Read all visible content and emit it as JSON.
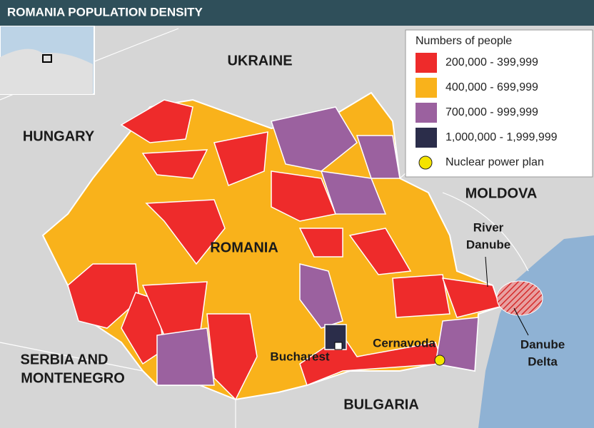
{
  "header": {
    "title": "ROMANIA POPULATION DENSITY"
  },
  "legend": {
    "title": "Numbers of people",
    "items": [
      {
        "label": "200,000 - 399,999",
        "color": "#ee2b2b"
      },
      {
        "label": "400,000 - 699,999",
        "color": "#f9b21b"
      },
      {
        "label": "700,000 - 999,999",
        "color": "#9b619f"
      },
      {
        "label": "1,000,000 - 1,999,999",
        "color": "#2b2d4a"
      },
      {
        "label": "Nuclear power plan"
      }
    ]
  },
  "countries": [
    "UKRAINE",
    "HUNGARY",
    "MOLDOVA",
    "ROMANIA",
    [
      "SERBIA AND",
      "MONTENEGRO"
    ],
    "BULGARIA"
  ],
  "places": {
    "river": [
      "River",
      "Danube"
    ],
    "delta": [
      "Danube",
      "Delta"
    ],
    "capital": "Bucharest",
    "plant": "Cernavoda"
  }
}
